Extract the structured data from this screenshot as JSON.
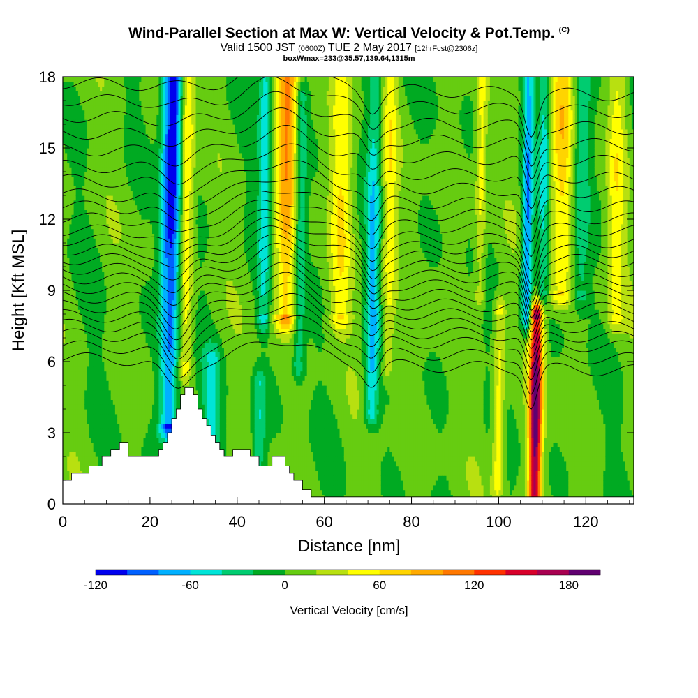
{
  "header": {
    "title": "Wind-Parallel Section at Max W: Vertical Velocity & Pot.Temp.",
    "title_suffix": "(C)",
    "valid_prefix": "Valid 1500 JST",
    "valid_utc": "(0600Z)",
    "valid_date": "TUE 2 May 2017",
    "forecast": "[12hrFcst@2306z]",
    "box_info": "boxWmax=233@35.57,139.64,1315m"
  },
  "chart_data": {
    "type": "heatmap",
    "xlabel": "Distance [nm]",
    "ylabel": "Height [Kft MSL]",
    "xlim": [
      0,
      131
    ],
    "ylim": [
      0,
      18
    ],
    "x_ticks": [
      0,
      20,
      40,
      60,
      80,
      100,
      120
    ],
    "y_ticks": [
      0,
      3,
      6,
      9,
      12,
      15,
      18
    ],
    "colorbar": {
      "label": "Vertical Velocity [cm/s]",
      "min": -120,
      "max": 200,
      "step": 20,
      "tick_values": [
        -120,
        -60,
        0,
        60,
        120,
        180
      ],
      "colors": [
        "#0000ee",
        "#0060ff",
        "#00b0ff",
        "#00e4d8",
        "#00cc70",
        "#00aa22",
        "#66cc11",
        "#b8e010",
        "#ffff00",
        "#ffd400",
        "#ffaa00",
        "#ff7800",
        "#ff3200",
        "#d8002a",
        "#a80050",
        "#600070"
      ]
    },
    "terrain_profile": [
      [
        0,
        1.0
      ],
      [
        2,
        1.0
      ],
      [
        2,
        1.3
      ],
      [
        6,
        1.3
      ],
      [
        6,
        1.6
      ],
      [
        9,
        1.6
      ],
      [
        9,
        2.0
      ],
      [
        11,
        2.0
      ],
      [
        11,
        2.3
      ],
      [
        13,
        2.3
      ],
      [
        13,
        2.6
      ],
      [
        15,
        2.6
      ],
      [
        15,
        2.0
      ],
      [
        22,
        2.0
      ],
      [
        22,
        2.3
      ],
      [
        23,
        2.3
      ],
      [
        23,
        2.6
      ],
      [
        24,
        2.6
      ],
      [
        24,
        3.0
      ],
      [
        25,
        3.0
      ],
      [
        25,
        3.6
      ],
      [
        26,
        3.6
      ],
      [
        26,
        4.0
      ],
      [
        27,
        4.0
      ],
      [
        27,
        4.6
      ],
      [
        28,
        4.6
      ],
      [
        28,
        4.9
      ],
      [
        30,
        4.9
      ],
      [
        30,
        4.6
      ],
      [
        31,
        4.6
      ],
      [
        31,
        4.0
      ],
      [
        32,
        4.0
      ],
      [
        32,
        3.6
      ],
      [
        33,
        3.6
      ],
      [
        33,
        3.3
      ],
      [
        34,
        3.3
      ],
      [
        34,
        2.9
      ],
      [
        35,
        2.9
      ],
      [
        35,
        2.6
      ],
      [
        36,
        2.6
      ],
      [
        36,
        2.3
      ],
      [
        37,
        2.3
      ],
      [
        37,
        2.0
      ],
      [
        39,
        2.0
      ],
      [
        39,
        2.3
      ],
      [
        43,
        2.3
      ],
      [
        43,
        2.0
      ],
      [
        45,
        2.0
      ],
      [
        45,
        1.6
      ],
      [
        48,
        1.6
      ],
      [
        48,
        2.0
      ],
      [
        51,
        2.0
      ],
      [
        51,
        1.6
      ],
      [
        52,
        1.6
      ],
      [
        52,
        1.3
      ],
      [
        53,
        1.3
      ],
      [
        53,
        1.0
      ],
      [
        55,
        1.0
      ],
      [
        55,
        0.6
      ],
      [
        57,
        0.6
      ],
      [
        57,
        0.3
      ],
      [
        131,
        0.3
      ]
    ],
    "w_features": [
      {
        "x": 25.0,
        "w": 2.2,
        "peak": -130,
        "y0": 3.5,
        "y1": 18,
        "ymid": 15.5
      },
      {
        "x": 28.5,
        "w": 1.6,
        "peak": 60,
        "y0": 6,
        "y1": 18,
        "ymid": 14
      },
      {
        "x": 34.0,
        "w": 2.0,
        "peak": -45,
        "y0": 0.5,
        "y1": 6,
        "ymid": 3
      },
      {
        "x": 45.0,
        "w": 1.6,
        "peak": -45,
        "y0": 0.5,
        "y1": 5,
        "ymid": 3
      },
      {
        "x": 46.5,
        "w": 1.5,
        "peak": -60,
        "y0": 8,
        "y1": 18,
        "ymid": 16
      },
      {
        "x": 51.5,
        "w": 2.5,
        "peak": 95,
        "y0": 8,
        "y1": 18,
        "ymid": 16.5
      },
      {
        "x": 54.5,
        "w": 1.4,
        "peak": -50,
        "y0": 6,
        "y1": 17,
        "ymid": 12
      },
      {
        "x": 64.0,
        "w": 2.5,
        "peak": 55,
        "y0": 8,
        "y1": 18,
        "ymid": 14
      },
      {
        "x": 71.0,
        "w": 1.6,
        "peak": -65,
        "y0": 4,
        "y1": 18,
        "ymid": 8
      },
      {
        "x": 75.0,
        "w": 1.5,
        "peak": 45,
        "y0": 6,
        "y1": 18,
        "ymid": 12
      },
      {
        "x": 96.0,
        "w": 1.3,
        "peak": 45,
        "y0": 9,
        "y1": 18,
        "ymid": 15
      },
      {
        "x": 100.0,
        "w": 1.4,
        "peak": 55,
        "y0": 1,
        "y1": 8,
        "ymid": 3
      },
      {
        "x": 106.5,
        "w": 1.3,
        "peak": -95,
        "y0": 8,
        "y1": 18,
        "ymid": 10
      },
      {
        "x": 108.5,
        "w": 1.5,
        "peak": 195,
        "y0": 0.3,
        "y1": 7.8,
        "ymid": 4
      },
      {
        "x": 110.5,
        "w": 1.2,
        "peak": -55,
        "y0": 9,
        "y1": 18,
        "ymid": 15
      },
      {
        "x": 114.5,
        "w": 2.8,
        "peak": 65,
        "y0": 9,
        "y1": 18,
        "ymid": 15.5
      },
      {
        "x": 119.0,
        "w": 2.0,
        "peak": -45,
        "y0": 9,
        "y1": 18,
        "ymid": 14
      },
      {
        "x": 127.0,
        "w": 2.0,
        "peak": 45,
        "y0": 8,
        "y1": 18,
        "ymid": 13
      }
    ],
    "theta_contour_base_kft": [
      5.9,
      6.4,
      6.9,
      7.3,
      7.7,
      8.1,
      8.5,
      8.9,
      9.3,
      9.7,
      10.1,
      10.5,
      10.9,
      11.3,
      11.8,
      12.3,
      12.8,
      13.4,
      14.0,
      14.7,
      15.4,
      16.1,
      16.8,
      17.5
    ]
  }
}
